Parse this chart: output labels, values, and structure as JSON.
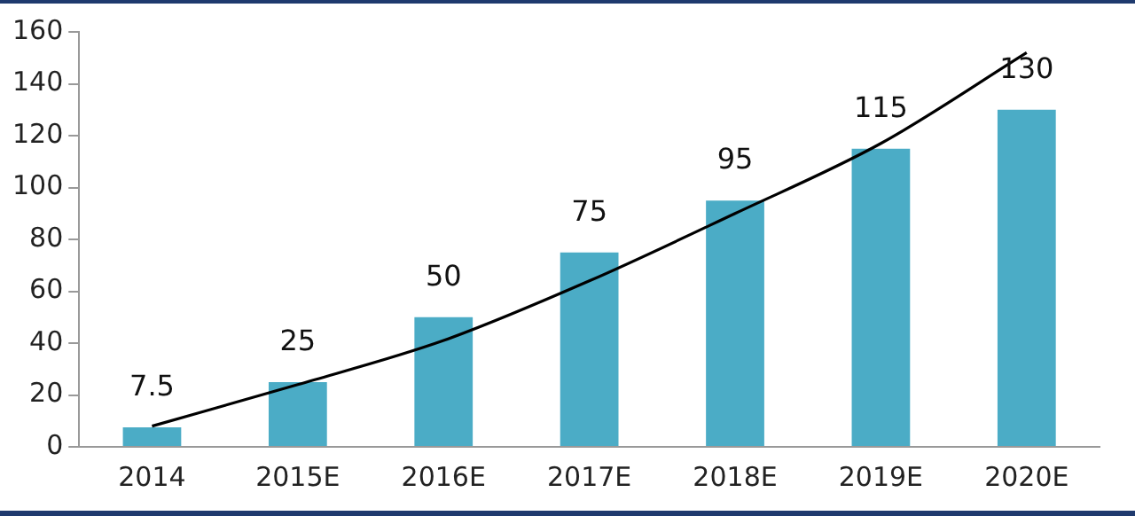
{
  "chart_data": {
    "type": "bar",
    "categories": [
      "2014",
      "2015E",
      "2016E",
      "2017E",
      "2018E",
      "2019E",
      "2020E"
    ],
    "series": [
      {
        "color": "#4bacc6",
        "values": [
          7.5,
          25,
          50,
          75,
          95,
          115,
          130
        ],
        "data_labels": true
      },
      {
        "type": "line",
        "color": "#000000",
        "values": [
          8,
          24,
          41,
          64,
          90,
          117,
          152
        ],
        "marker": "none"
      }
    ],
    "ylim": [
      0,
      160
    ],
    "yticks": [
      0,
      20,
      40,
      60,
      80,
      100,
      120,
      140,
      160
    ],
    "grid": false,
    "legend": false
  }
}
